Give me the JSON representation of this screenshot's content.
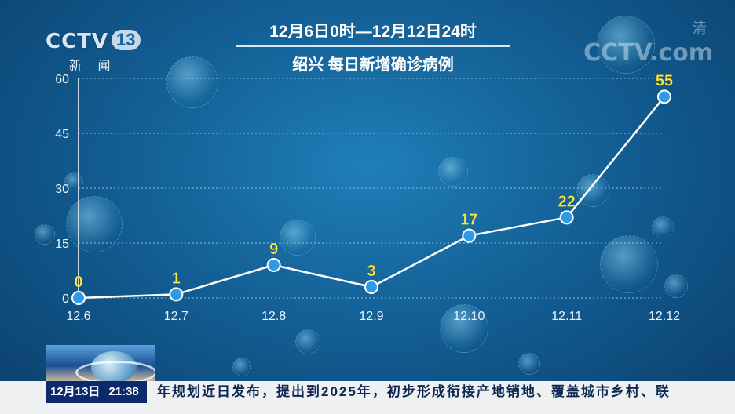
{
  "title_line1": "12月6日0时—12月12日24时",
  "title_line2": "绍兴 每日新增确诊病例",
  "logo_left": {
    "text": "CCTV",
    "channel": "13",
    "sub": "新 闻"
  },
  "logo_right": {
    "text": "CCTV.com",
    "sub": "清"
  },
  "ticker": {
    "date": "12月13日",
    "time": "21:38",
    "text": "年规划近日发布，提出到2025年，初步形成衔接产地销地、覆盖城市乡村、联"
  },
  "colors": {
    "line": "#ffffff",
    "point_fill": "#2e9be6",
    "point_stroke": "#ffffff",
    "label": "#ffe83a",
    "grid": "#a9d6f0"
  },
  "chart_data": {
    "type": "line",
    "categories": [
      "12.6",
      "12.7",
      "12.8",
      "12.9",
      "12.10",
      "12.11",
      "12.12"
    ],
    "values": [
      0,
      1,
      9,
      3,
      17,
      22,
      55
    ],
    "data_labels": [
      "0",
      "1",
      "9",
      "3",
      "17",
      "22",
      "55"
    ],
    "ylim": [
      0,
      60
    ],
    "yticks": [
      0,
      15,
      30,
      45,
      60
    ],
    "grid": true
  }
}
